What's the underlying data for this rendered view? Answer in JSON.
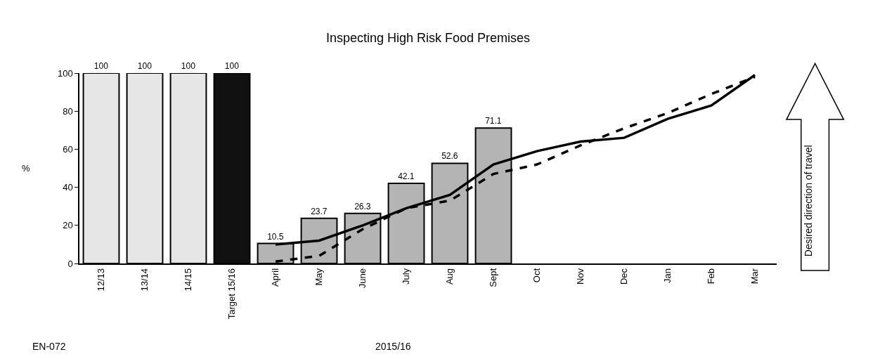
{
  "chart_data": {
    "type": "bar",
    "title": "Inspecting High Risk Food Premises",
    "xlabel": "2015/16",
    "ylabel": "%",
    "categories": [
      "12/13",
      "13/14",
      "14/15",
      "Target 15/16",
      "April",
      "May",
      "June",
      "July",
      "Aug",
      "Sept",
      "Oct",
      "Nov",
      "Dec",
      "Jan",
      "Feb",
      "Mar"
    ],
    "series": [
      {
        "colors": [
          "#e6e6e6",
          "#e6e6e6",
          "#e6e6e6",
          "#111111",
          "#b4b4b4",
          "#b4b4b4",
          "#b4b4b4",
          "#b4b4b4",
          "#b4b4b4",
          "#b4b4b4",
          "#b4b4b4",
          "#b4b4b4",
          "#b4b4b4",
          "#b4b4b4",
          "#b4b4b4",
          "#b4b4b4"
        ],
        "values": [
          100,
          100,
          100,
          100,
          10.5,
          23.7,
          26.3,
          42.1,
          52.6,
          71.1,
          null,
          null,
          null,
          null,
          null,
          null
        ],
        "value_labels": [
          "100",
          "100",
          "100",
          "100",
          "10.5",
          "23.7",
          "26.3",
          "42.1",
          "52.6",
          "71.1",
          null,
          null,
          null,
          null,
          null,
          null
        ]
      },
      {
        "type": "line",
        "color": "#000000",
        "line_style": "solid",
        "values": [
          null,
          null,
          null,
          null,
          10,
          12,
          20,
          29,
          36,
          52,
          59,
          64,
          66,
          76,
          83,
          99
        ]
      },
      {
        "type": "line",
        "color": "#000000",
        "line_style": "dashed",
        "values": [
          null,
          null,
          null,
          null,
          1,
          4,
          18,
          29,
          33,
          47,
          52,
          62,
          71,
          79,
          89,
          98
        ]
      }
    ],
    "ylim": [
      0,
      100
    ],
    "yticks": [
      0,
      20,
      40,
      60,
      80,
      100
    ],
    "annotations": [
      "EN-072",
      "Desired direction of travel"
    ]
  }
}
